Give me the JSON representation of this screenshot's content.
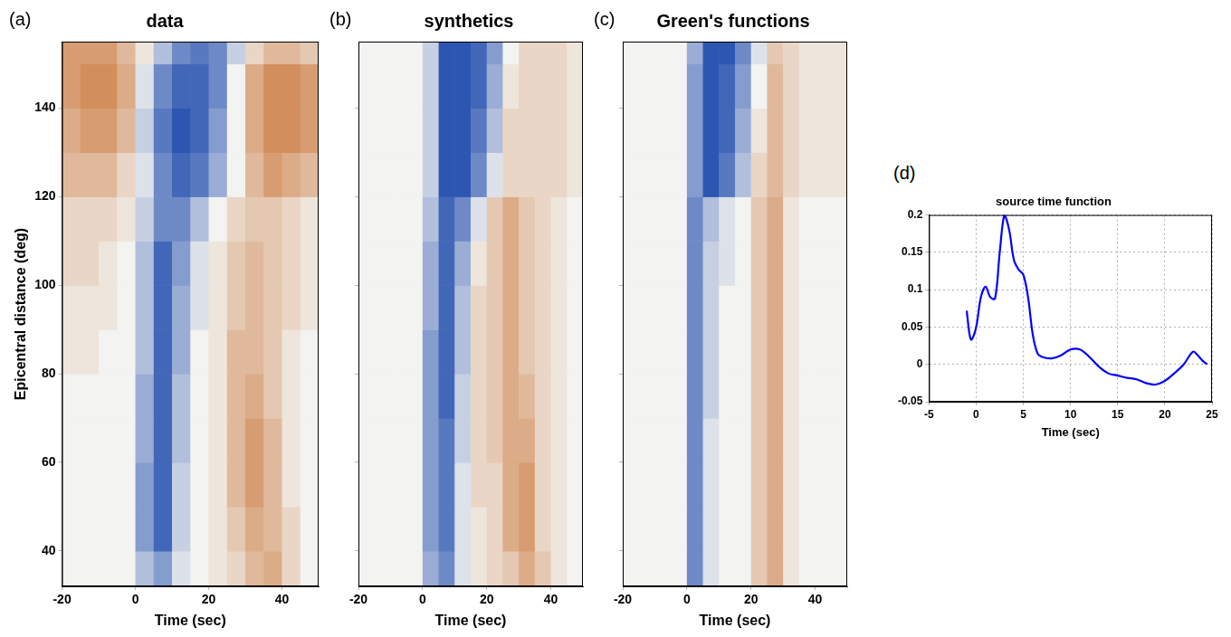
{
  "chart_data": [
    {
      "label": "(a)",
      "type": "heatmap",
      "title": "data",
      "x_label": "Time (sec)",
      "y_label": "Epicentral distance (deg)",
      "x": [
        -17.5,
        -12.5,
        -7.5,
        -2.5,
        2.5,
        7.5,
        12.5,
        17.5,
        22.5,
        27.5,
        32.5,
        37.5,
        42.5,
        47.5
      ],
      "y": [
        35,
        45,
        55,
        65,
        75,
        85,
        95,
        105,
        115,
        125,
        135,
        145,
        155
      ],
      "cells": [
        [
          0,
          0,
          0,
          0,
          -0.3,
          -0.5,
          -0.1,
          0,
          0.1,
          0.2,
          0.4,
          0.5,
          0.2,
          0
        ],
        [
          0,
          0,
          0,
          0,
          -0.5,
          -0.8,
          -0.2,
          0,
          0.1,
          0.3,
          0.5,
          0.4,
          0.2,
          0
        ],
        [
          0,
          0,
          0,
          0,
          -0.5,
          -0.8,
          -0.2,
          0,
          0.1,
          0.4,
          0.6,
          0.4,
          0.1,
          0
        ],
        [
          0,
          0,
          0,
          0,
          -0.4,
          -0.8,
          -0.3,
          0,
          0.1,
          0.4,
          0.6,
          0.4,
          0.1,
          0
        ],
        [
          0,
          0,
          0,
          0,
          -0.4,
          -0.8,
          -0.3,
          0,
          0.1,
          0.4,
          0.5,
          0.3,
          0.1,
          0
        ],
        [
          0.1,
          0.1,
          0,
          0,
          -0.3,
          -0.8,
          -0.4,
          0,
          0.1,
          0.4,
          0.4,
          0.3,
          0.1,
          0
        ],
        [
          0.1,
          0.1,
          0.1,
          0,
          -0.3,
          -0.8,
          -0.4,
          -0.1,
          0.1,
          0.3,
          0.4,
          0.3,
          0.2,
          0.1
        ],
        [
          0.2,
          0.2,
          0.1,
          0,
          -0.3,
          -0.8,
          -0.5,
          -0.1,
          0.1,
          0.3,
          0.4,
          0.3,
          0.2,
          0.1
        ],
        [
          0.2,
          0.2,
          0.2,
          0.1,
          -0.2,
          -0.6,
          -0.6,
          -0.3,
          0,
          0.2,
          0.3,
          0.3,
          0.2,
          0.1
        ],
        [
          0.4,
          0.4,
          0.4,
          0.2,
          -0.1,
          -0.6,
          -0.8,
          -0.7,
          -0.4,
          0,
          0.4,
          0.6,
          0.5,
          0.4
        ],
        [
          0.5,
          0.6,
          0.6,
          0.4,
          -0.2,
          -0.7,
          -0.9,
          -0.8,
          -0.5,
          0,
          0.5,
          0.7,
          0.7,
          0.6
        ],
        [
          0.6,
          0.7,
          0.7,
          0.5,
          -0.1,
          -0.6,
          -0.8,
          -0.8,
          -0.6,
          0,
          0.5,
          0.7,
          0.7,
          0.6
        ],
        [
          0.6,
          0.6,
          0.6,
          0.4,
          0.1,
          -0.3,
          -0.6,
          -0.7,
          -0.6,
          -0.2,
          0.2,
          0.4,
          0.4,
          0.3
        ]
      ],
      "color_range": [
        -1,
        1
      ],
      "xlim": [
        -20,
        50
      ],
      "xticks": [
        -20,
        0,
        20,
        40
      ],
      "ylim": [
        32,
        155
      ],
      "yticks": [
        40,
        60,
        80,
        100,
        120,
        140
      ],
      "grid": true
    },
    {
      "label": "(b)",
      "type": "heatmap",
      "title": "synthetics",
      "x_label": "Time (sec)",
      "tick_labels": "x",
      "x": [
        -17.5,
        -12.5,
        -7.5,
        -2.5,
        2.5,
        7.5,
        12.5,
        17.5,
        22.5,
        27.5,
        32.5,
        37.5,
        42.5,
        47.5
      ],
      "y": [
        35,
        45,
        55,
        65,
        75,
        85,
        95,
        105,
        115,
        125,
        135,
        145,
        155
      ],
      "cells": [
        [
          0,
          0,
          0,
          0,
          -0.4,
          -0.6,
          -0.1,
          0.1,
          0.2,
          0.3,
          0.5,
          0.3,
          0.1,
          0
        ],
        [
          0,
          0,
          0,
          0,
          -0.5,
          -0.7,
          -0.1,
          0.1,
          0.2,
          0.5,
          0.6,
          0.2,
          0.1,
          0
        ],
        [
          0,
          0,
          0,
          0,
          -0.5,
          -0.7,
          -0.1,
          0.2,
          0.2,
          0.5,
          0.6,
          0.2,
          0.1,
          0
        ],
        [
          0,
          0,
          0,
          0,
          -0.5,
          -0.7,
          -0.2,
          0.2,
          0.3,
          0.5,
          0.5,
          0.2,
          0.1,
          0
        ],
        [
          0,
          0,
          0,
          0,
          -0.5,
          -0.8,
          -0.2,
          0.2,
          0.3,
          0.5,
          0.4,
          0.2,
          0.1,
          0
        ],
        [
          0,
          0,
          0,
          0,
          -0.5,
          -0.8,
          -0.3,
          0.2,
          0.3,
          0.5,
          0.3,
          0.2,
          0.1,
          0
        ],
        [
          0,
          0,
          0,
          0,
          -0.4,
          -0.8,
          -0.3,
          0.2,
          0.3,
          0.5,
          0.3,
          0.2,
          0.1,
          0
        ],
        [
          0,
          0,
          0,
          0,
          -0.4,
          -0.8,
          -0.4,
          0.1,
          0.3,
          0.5,
          0.3,
          0.2,
          0.1,
          0
        ],
        [
          0,
          0,
          0,
          0,
          -0.3,
          -0.8,
          -0.6,
          -0.1,
          0.3,
          0.5,
          0.3,
          0.2,
          0.1,
          0
        ],
        [
          0,
          0,
          0,
          0,
          -0.2,
          -0.9,
          -0.9,
          -0.6,
          -0.1,
          0.2,
          0.2,
          0.2,
          0.2,
          0.1
        ],
        [
          0,
          0,
          0,
          0,
          -0.2,
          -0.9,
          -0.9,
          -0.7,
          -0.3,
          0.2,
          0.2,
          0.2,
          0.2,
          0.1
        ],
        [
          0,
          0,
          0,
          0,
          -0.2,
          -0.9,
          -0.9,
          -0.8,
          -0.4,
          0.1,
          0.2,
          0.2,
          0.2,
          0.1
        ],
        [
          0,
          0,
          0,
          0,
          -0.2,
          -0.9,
          -0.9,
          -0.8,
          -0.5,
          0,
          0.2,
          0.2,
          0.2,
          0.1
        ]
      ],
      "color_range": [
        -1,
        1
      ],
      "xlim": [
        -20,
        50
      ],
      "xticks": [
        -20,
        0,
        20,
        40
      ],
      "ylim": [
        32,
        155
      ],
      "yticks": [
        40,
        60,
        80,
        100,
        120,
        140
      ],
      "grid": true
    },
    {
      "label": "(c)",
      "type": "heatmap",
      "title": "Green's functions",
      "x_label": "Time (sec)",
      "tick_labels": "x",
      "x": [
        -17.5,
        -12.5,
        -7.5,
        -2.5,
        2.5,
        7.5,
        12.5,
        17.5,
        22.5,
        27.5,
        32.5,
        37.5,
        42.5,
        47.5
      ],
      "y": [
        35,
        45,
        55,
        65,
        75,
        85,
        95,
        105,
        115,
        125,
        135,
        145,
        155
      ],
      "cells": [
        [
          0,
          0,
          0,
          0,
          -0.6,
          -0.1,
          0,
          0,
          0.3,
          0.5,
          0.1,
          0,
          0,
          0
        ],
        [
          0,
          0,
          0,
          0,
          -0.6,
          -0.1,
          0,
          0,
          0.3,
          0.5,
          0.1,
          0,
          0,
          0
        ],
        [
          0,
          0,
          0,
          0,
          -0.6,
          -0.1,
          0,
          0,
          0.3,
          0.5,
          0.1,
          0,
          0,
          0
        ],
        [
          0,
          0,
          0,
          0,
          -0.6,
          -0.1,
          0,
          0,
          0.3,
          0.5,
          0.1,
          0,
          0,
          0
        ],
        [
          0,
          0,
          0,
          0,
          -0.6,
          -0.2,
          0,
          0,
          0.3,
          0.5,
          0.1,
          0,
          0,
          0
        ],
        [
          0,
          0,
          0,
          0,
          -0.6,
          -0.2,
          0,
          0,
          0.3,
          0.5,
          0.1,
          0,
          0,
          0
        ],
        [
          0,
          0,
          0,
          0,
          -0.6,
          -0.2,
          0,
          0,
          0.3,
          0.5,
          0.1,
          0,
          0,
          0
        ],
        [
          0,
          0,
          0,
          0,
          -0.6,
          -0.2,
          -0.1,
          0,
          0.3,
          0.5,
          0.1,
          0,
          0,
          0
        ],
        [
          0,
          0,
          0,
          0,
          -0.6,
          -0.3,
          -0.1,
          0,
          0.3,
          0.5,
          0.1,
          0,
          0,
          0
        ],
        [
          0,
          0,
          0,
          0,
          -0.5,
          -0.9,
          -0.7,
          -0.3,
          0.2,
          0.4,
          0.2,
          0.1,
          0.1,
          0.1
        ],
        [
          0,
          0,
          0,
          0,
          -0.5,
          -0.9,
          -0.8,
          -0.4,
          0.1,
          0.4,
          0.2,
          0.1,
          0.1,
          0.1
        ],
        [
          0,
          0,
          0,
          0,
          -0.5,
          -0.9,
          -0.8,
          -0.5,
          0,
          0.4,
          0.2,
          0.1,
          0.1,
          0.1
        ],
        [
          0,
          0,
          0,
          0,
          -0.4,
          -0.9,
          -0.9,
          -0.6,
          -0.1,
          0.3,
          0.2,
          0.1,
          0.1,
          0.1
        ]
      ],
      "color_range": [
        -1,
        1
      ],
      "xlim": [
        -20,
        50
      ],
      "xticks": [
        -20,
        0,
        20,
        40
      ],
      "ylim": [
        32,
        155
      ],
      "yticks": [
        40,
        60,
        80,
        100,
        120,
        140
      ],
      "grid": true
    },
    {
      "label": "(d)",
      "type": "line",
      "title": "source time function",
      "x_label": "Time (sec)",
      "x": [
        -1,
        -0.7,
        -0.5,
        0,
        0.5,
        1,
        1.5,
        2,
        2.5,
        3,
        3.5,
        4,
        4.5,
        5,
        5.5,
        6,
        6.5,
        7,
        8,
        9,
        10,
        11,
        12,
        13,
        14,
        15,
        16,
        17,
        18,
        19,
        20,
        21,
        22,
        23,
        23.5,
        24,
        24.5
      ],
      "values": [
        0.072,
        0.04,
        0.033,
        0.05,
        0.09,
        0.104,
        0.09,
        0.088,
        0.15,
        0.2,
        0.18,
        0.14,
        0.127,
        0.12,
        0.09,
        0.04,
        0.015,
        0.01,
        0.008,
        0.012,
        0.02,
        0.02,
        0.01,
        -0.003,
        -0.012,
        -0.015,
        -0.018,
        -0.02,
        -0.025,
        -0.027,
        -0.022,
        -0.012,
        0,
        0.017,
        0.012,
        0.005,
        0
      ],
      "color": "#0000ff",
      "xlim": [
        -5,
        25
      ],
      "xticks": [
        -5,
        0,
        5,
        10,
        15,
        20,
        25
      ],
      "ylim": [
        -0.05,
        0.2
      ],
      "yticks": [
        -0.05,
        0,
        0.05,
        0.1,
        0.15,
        0.2
      ],
      "grid": true
    }
  ]
}
